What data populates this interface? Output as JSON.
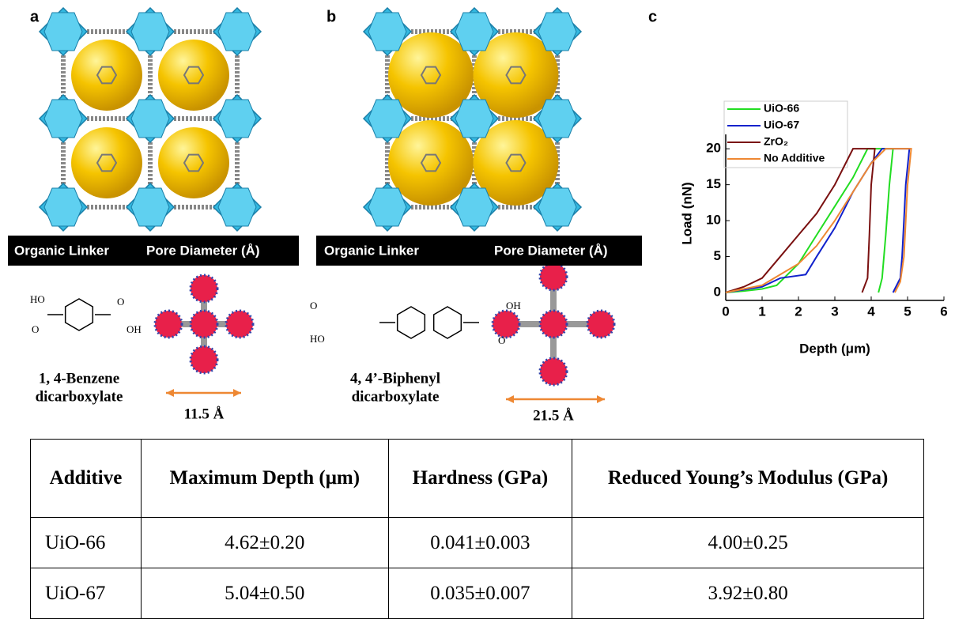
{
  "panels": {
    "a": {
      "label": "a",
      "header": [
        "Organic Linker",
        "Pore Diameter (Å)"
      ],
      "atom_labels": [
        "HO",
        "O",
        "O",
        "OH"
      ],
      "linker": [
        "1, 4-Benzene",
        "dicarboxylate"
      ],
      "pore": "11.5 Å"
    },
    "b": {
      "label": "b",
      "header": [
        "Organic Linker",
        "Pore Diameter (Å)"
      ],
      "atom_labels": [
        "O",
        "HO",
        "OH",
        "O"
      ],
      "linker": [
        "4, 4’-Biphenyl",
        "dicarboxylate"
      ],
      "pore": "21.5 Å"
    },
    "c": {
      "label": "c"
    }
  },
  "chart_data": {
    "type": "line",
    "x_label": "Depth (μm)",
    "y_label": "Load (nN)",
    "xlim": [
      0,
      6
    ],
    "ylim": [
      -1.1,
      22
    ],
    "xticks": [
      0,
      1,
      2,
      3,
      4,
      5,
      6
    ],
    "yticks": [
      0,
      5,
      10,
      15,
      20
    ],
    "legend": "upper-left",
    "series": [
      {
        "name": "UiO-66",
        "color": "#22dd22",
        "x": [
          0,
          0.5,
          1,
          1.4,
          2,
          2.5,
          3,
          3.5,
          3.9,
          4.6,
          4.5,
          4.4,
          4.3,
          4.2
        ],
        "values": [
          0,
          0.2,
          0.5,
          1,
          4,
          8,
          12,
          16,
          20,
          20,
          15,
          8,
          2,
          0
        ]
      },
      {
        "name": "UiO-67",
        "color": "#1122cc",
        "x": [
          0,
          1,
          1.5,
          2.2,
          2.5,
          3,
          3.5,
          4,
          4.3,
          5.05,
          4.95,
          4.85,
          4.8,
          4.6
        ],
        "values": [
          0,
          0.8,
          2,
          2.5,
          5,
          9,
          14,
          18,
          20,
          20,
          15,
          5,
          2,
          0
        ]
      },
      {
        "name": "ZrO₂",
        "color": "#7a1010",
        "x": [
          0,
          0.5,
          1,
          1.5,
          2,
          2.5,
          3,
          3.5,
          4.1,
          4.0,
          3.95,
          3.9,
          3.75
        ],
        "values": [
          0,
          0.8,
          2,
          5,
          8,
          11,
          15,
          20,
          20,
          15,
          8,
          2,
          0
        ]
      },
      {
        "name": "No Additive",
        "color": "#ee8833",
        "x": [
          0,
          1,
          2,
          2.5,
          3,
          3.5,
          4,
          4.4,
          5.1,
          5.0,
          4.9,
          4.8,
          4.65
        ],
        "values": [
          0,
          1,
          4,
          6.5,
          10,
          14,
          18,
          20,
          20,
          15,
          5,
          1.5,
          0
        ]
      }
    ]
  },
  "table": {
    "header": [
      "Additive",
      "Maximum Depth (μm)",
      "Hardness (GPa)",
      "Reduced Young’s Modulus (GPa)"
    ],
    "rows": [
      [
        "UiO-66",
        "4.62±0.20",
        "0.041±0.003",
        "4.00±0.25"
      ],
      [
        "UiO-67",
        "5.04±0.50",
        "0.035±0.007",
        "3.92±0.80"
      ]
    ]
  }
}
